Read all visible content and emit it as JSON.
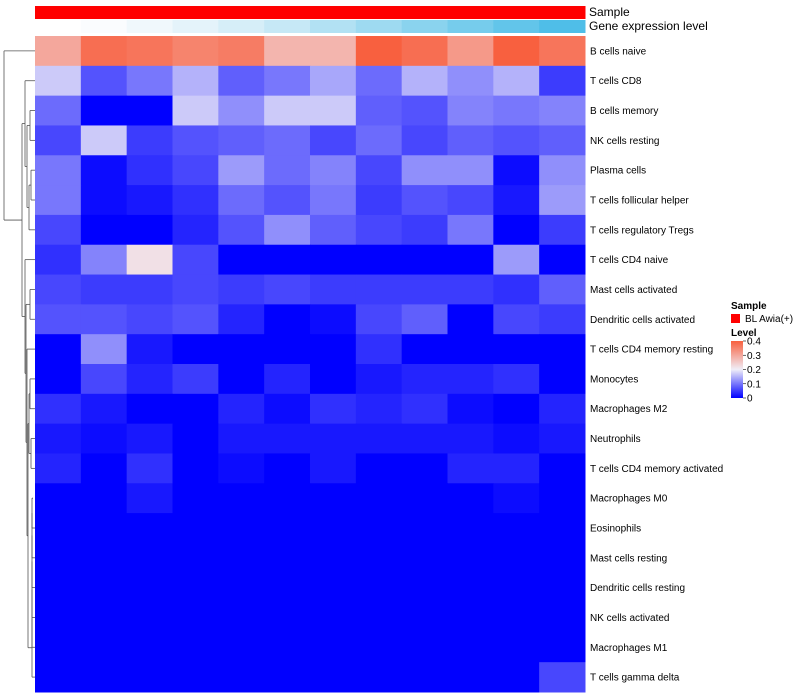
{
  "chart_data": {
    "type": "heatmap",
    "annotations": [
      {
        "name": "Sample",
        "colors": [
          "#FF0000",
          "#FF0000",
          "#FF0000",
          "#FF0000",
          "#FF0000",
          "#FF0000",
          "#FF0000",
          "#FF0000",
          "#FF0000",
          "#FF0000",
          "#FF0000",
          "#FF0000"
        ]
      },
      {
        "name": "Gene expression level",
        "colors": [
          "#FFFFFF",
          "#FAFCFE",
          "#F0F8FC",
          "#E4F3FA",
          "#D6EEF8",
          "#C6E8F6",
          "#B2E1F3",
          "#9EDAF1",
          "#8AD3EE",
          "#76CCEC",
          "#62C5EA",
          "#4FBEE8"
        ]
      }
    ],
    "rows": [
      "B cells naive",
      "T cells CD8",
      "B cells memory",
      "NK cells resting",
      "Plasma cells",
      "T cells follicular helper",
      "T cells regulatory  Tregs",
      "T cells CD4 naive",
      "Mast cells activated",
      "Dendritic cells activated",
      "T cells CD4 memory resting",
      "Monocytes",
      "Macrophages M2",
      "Neutrophils",
      "T cells CD4 memory activated",
      "Macrophages M0",
      "Eosinophils",
      "Mast cells resting",
      "Dendritic cells resting",
      "NK cells activated",
      "Macrophages M1",
      "T cells gamma delta"
    ],
    "values": [
      [
        0.3,
        0.38,
        0.37,
        0.35,
        0.36,
        0.28,
        0.28,
        0.4,
        0.38,
        0.32,
        0.4,
        0.37
      ],
      [
        0.17,
        0.07,
        0.1,
        0.15,
        0.08,
        0.1,
        0.14,
        0.09,
        0.15,
        0.12,
        0.15,
        0.05
      ],
      [
        0.09,
        0.0,
        0.0,
        0.17,
        0.12,
        0.17,
        0.17,
        0.08,
        0.07,
        0.11,
        0.1,
        0.11
      ],
      [
        0.06,
        0.17,
        0.05,
        0.07,
        0.08,
        0.09,
        0.06,
        0.09,
        0.06,
        0.08,
        0.07,
        0.08
      ],
      [
        0.1,
        0.01,
        0.04,
        0.06,
        0.13,
        0.09,
        0.11,
        0.06,
        0.12,
        0.12,
        0.01,
        0.12
      ],
      [
        0.1,
        0.01,
        0.02,
        0.04,
        0.09,
        0.07,
        0.1,
        0.05,
        0.07,
        0.06,
        0.02,
        0.13
      ],
      [
        0.06,
        0.0,
        0.0,
        0.03,
        0.07,
        0.12,
        0.08,
        0.06,
        0.05,
        0.1,
        0.0,
        0.05
      ],
      [
        0.04,
        0.11,
        0.22,
        0.06,
        0.0,
        0.0,
        0.0,
        0.0,
        0.0,
        0.0,
        0.13,
        0.0
      ],
      [
        0.06,
        0.05,
        0.05,
        0.06,
        0.05,
        0.06,
        0.05,
        0.05,
        0.05,
        0.05,
        0.04,
        0.08
      ],
      [
        0.07,
        0.07,
        0.06,
        0.07,
        0.03,
        0.0,
        0.01,
        0.06,
        0.08,
        0.0,
        0.06,
        0.05
      ],
      [
        0.0,
        0.12,
        0.02,
        0.0,
        0.0,
        0.0,
        0.0,
        0.04,
        0.0,
        0.0,
        0.0,
        0.0
      ],
      [
        0.0,
        0.06,
        0.03,
        0.05,
        0.0,
        0.03,
        0.0,
        0.02,
        0.03,
        0.03,
        0.04,
        0.0
      ],
      [
        0.04,
        0.02,
        0.0,
        0.0,
        0.03,
        0.01,
        0.04,
        0.03,
        0.04,
        0.01,
        0.0,
        0.03
      ],
      [
        0.02,
        0.01,
        0.02,
        0.0,
        0.02,
        0.02,
        0.02,
        0.02,
        0.02,
        0.02,
        0.01,
        0.02
      ],
      [
        0.03,
        0.0,
        0.04,
        0.0,
        0.01,
        0.0,
        0.02,
        0.0,
        0.0,
        0.03,
        0.03,
        0.0
      ],
      [
        0.0,
        0.0,
        0.02,
        0.0,
        0.0,
        0.0,
        0.0,
        0.0,
        0.0,
        0.0,
        0.01,
        0.0
      ],
      [
        0.0,
        0.0,
        0.0,
        0.0,
        0.0,
        0.0,
        0.0,
        0.0,
        0.0,
        0.0,
        0.0,
        0.0
      ],
      [
        0.0,
        0.0,
        0.0,
        0.0,
        0.0,
        0.0,
        0.0,
        0.0,
        0.0,
        0.0,
        0.0,
        0.0
      ],
      [
        0.0,
        0.0,
        0.0,
        0.0,
        0.0,
        0.0,
        0.0,
        0.0,
        0.0,
        0.0,
        0.0,
        0.0
      ],
      [
        0.0,
        0.0,
        0.0,
        0.0,
        0.0,
        0.0,
        0.0,
        0.0,
        0.0,
        0.0,
        0.0,
        0.0
      ],
      [
        0.0,
        0.0,
        0.0,
        0.0,
        0.0,
        0.0,
        0.0,
        0.0,
        0.0,
        0.0,
        0.0,
        0.0
      ],
      [
        0.0,
        0.0,
        0.0,
        0.0,
        0.0,
        0.0,
        0.0,
        0.0,
        0.0,
        0.0,
        0.0,
        0.06
      ]
    ],
    "color_scale": {
      "low": "#0000FF",
      "mid": "#F0EEF8",
      "high": "#F8603F",
      "midpoint": 0.2,
      "range": [
        0,
        0.4
      ]
    },
    "legend": {
      "sample_title": "Sample",
      "sample_entry": "BL Awia(+)",
      "sample_color": "#FF0000",
      "level_title": "Level",
      "level_ticks": [
        "0.4",
        "0.3",
        "0.2",
        "0.1",
        "0"
      ],
      "level_tick_values": [
        0.4,
        0.3,
        0.2,
        0.1,
        0
      ],
      "placement": "right"
    },
    "dendrogram": "rows"
  }
}
